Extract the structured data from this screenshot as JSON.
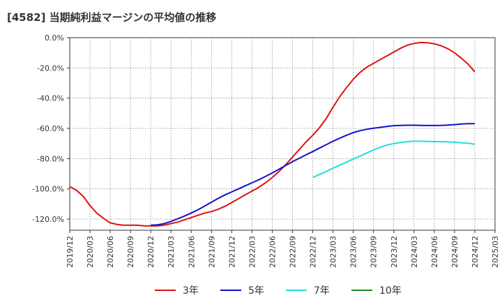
{
  "title": "[4582]  当期純利益マージンの平均値の推移",
  "chart_data": {
    "type": "line",
    "ylim": [
      -128,
      0
    ],
    "grid": true,
    "legend_position": "bottom",
    "y_ticks": [
      "0.0%",
      "-20.0%",
      "-40.0%",
      "-60.0%",
      "-80.0%",
      "-100.0%",
      "-120.0%"
    ],
    "y_tick_values": [
      0,
      -20,
      -40,
      -60,
      -80,
      -100,
      -120
    ],
    "x_ticks": [
      "2019/12",
      "2020/03",
      "2020/06",
      "2020/09",
      "2020/12",
      "2021/03",
      "2021/06",
      "2021/09",
      "2021/12",
      "2022/03",
      "2022/06",
      "2022/09",
      "2022/12",
      "2023/03",
      "2023/06",
      "2023/09",
      "2023/12",
      "2024/03",
      "2024/06",
      "2024/09",
      "2024/12",
      "2025/03"
    ],
    "series": [
      {
        "name": "3年",
        "color": "#dd1111",
        "x": [
          "2019/12",
          "2020/01",
          "2020/02",
          "2020/03",
          "2020/04",
          "2020/05",
          "2020/06",
          "2020/07",
          "2020/08",
          "2020/09",
          "2020/10",
          "2020/11",
          "2020/12",
          "2021/01",
          "2021/02",
          "2021/03",
          "2021/04",
          "2021/05",
          "2021/06",
          "2021/07",
          "2021/08",
          "2021/09",
          "2021/10",
          "2021/11",
          "2021/12",
          "2022/01",
          "2022/02",
          "2022/03",
          "2022/04",
          "2022/05",
          "2022/06",
          "2022/07",
          "2022/08",
          "2022/09",
          "2022/10",
          "2022/11",
          "2022/12",
          "2023/01",
          "2023/02",
          "2023/03",
          "2023/04",
          "2023/05",
          "2023/06",
          "2023/07",
          "2023/08",
          "2023/09",
          "2023/10",
          "2023/11",
          "2023/12",
          "2024/01",
          "2024/02",
          "2024/03",
          "2024/04",
          "2024/05",
          "2024/06",
          "2024/07",
          "2024/08",
          "2024/09",
          "2024/10",
          "2024/11",
          "2024/12"
        ],
        "values": [
          -98.5,
          -101,
          -105,
          -111,
          -116,
          -119.5,
          -122.5,
          -123.5,
          -124,
          -124,
          -124,
          -124.5,
          -124.5,
          -124.5,
          -124,
          -123,
          -122,
          -120.5,
          -119,
          -117.5,
          -116,
          -115,
          -113.5,
          -111.5,
          -109,
          -106.5,
          -104,
          -101.5,
          -99,
          -96,
          -92.5,
          -88.5,
          -84,
          -79,
          -74,
          -69,
          -64.5,
          -59.5,
          -53.5,
          -46,
          -39,
          -33,
          -27.5,
          -23,
          -19.5,
          -17,
          -14.5,
          -12,
          -9.5,
          -7,
          -5,
          -3.8,
          -3.2,
          -3.3,
          -4,
          -5.3,
          -7.3,
          -10,
          -13.5,
          -17.5,
          -22.5
        ]
      },
      {
        "name": "5年",
        "color": "#1111cc",
        "x": [
          "2020/12",
          "2021/01",
          "2021/02",
          "2021/03",
          "2021/04",
          "2021/05",
          "2021/06",
          "2021/07",
          "2021/08",
          "2021/09",
          "2021/10",
          "2021/11",
          "2021/12",
          "2022/01",
          "2022/02",
          "2022/03",
          "2022/04",
          "2022/05",
          "2022/06",
          "2022/07",
          "2022/08",
          "2022/09",
          "2022/10",
          "2022/11",
          "2022/12",
          "2023/01",
          "2023/02",
          "2023/03",
          "2023/04",
          "2023/05",
          "2023/06",
          "2023/07",
          "2023/08",
          "2023/09",
          "2023/10",
          "2023/11",
          "2023/12",
          "2024/01",
          "2024/02",
          "2024/03",
          "2024/04",
          "2024/05",
          "2024/06",
          "2024/07",
          "2024/08",
          "2024/09",
          "2024/10",
          "2024/11",
          "2024/12"
        ],
        "values": [
          -124,
          -123.8,
          -123,
          -121.5,
          -119.8,
          -118,
          -116,
          -113.8,
          -111.3,
          -108.8,
          -106.3,
          -104,
          -102,
          -100,
          -98,
          -96,
          -94,
          -91.8,
          -89.5,
          -87,
          -84.5,
          -82,
          -79.8,
          -77.5,
          -75.3,
          -73,
          -70.8,
          -68.5,
          -66.5,
          -64.5,
          -62.8,
          -61.5,
          -60.6,
          -59.9,
          -59.3,
          -58.7,
          -58.2,
          -58,
          -57.9,
          -57.9,
          -58,
          -58.1,
          -58.1,
          -58,
          -57.8,
          -57.5,
          -57.1,
          -56.9,
          -56.9
        ]
      },
      {
        "name": "7年",
        "color": "#22dddd",
        "x": [
          "2022/12",
          "2023/01",
          "2023/02",
          "2023/03",
          "2023/04",
          "2023/05",
          "2023/06",
          "2023/07",
          "2023/08",
          "2023/09",
          "2023/10",
          "2023/11",
          "2023/12",
          "2024/01",
          "2024/02",
          "2024/03",
          "2024/04",
          "2024/05",
          "2024/06",
          "2024/07",
          "2024/08",
          "2024/09",
          "2024/10",
          "2024/11",
          "2024/12"
        ],
        "values": [
          -92.5,
          -90.5,
          -88.5,
          -86.3,
          -84.3,
          -82.3,
          -80.3,
          -78.3,
          -76.3,
          -74.3,
          -72.5,
          -71,
          -70,
          -69.3,
          -68.8,
          -68.5,
          -68.5,
          -68.6,
          -68.7,
          -68.8,
          -68.9,
          -69.2,
          -69.5,
          -69.8,
          -70.5
        ]
      },
      {
        "name": "10年",
        "color": "#228822",
        "x": [],
        "values": []
      }
    ]
  }
}
